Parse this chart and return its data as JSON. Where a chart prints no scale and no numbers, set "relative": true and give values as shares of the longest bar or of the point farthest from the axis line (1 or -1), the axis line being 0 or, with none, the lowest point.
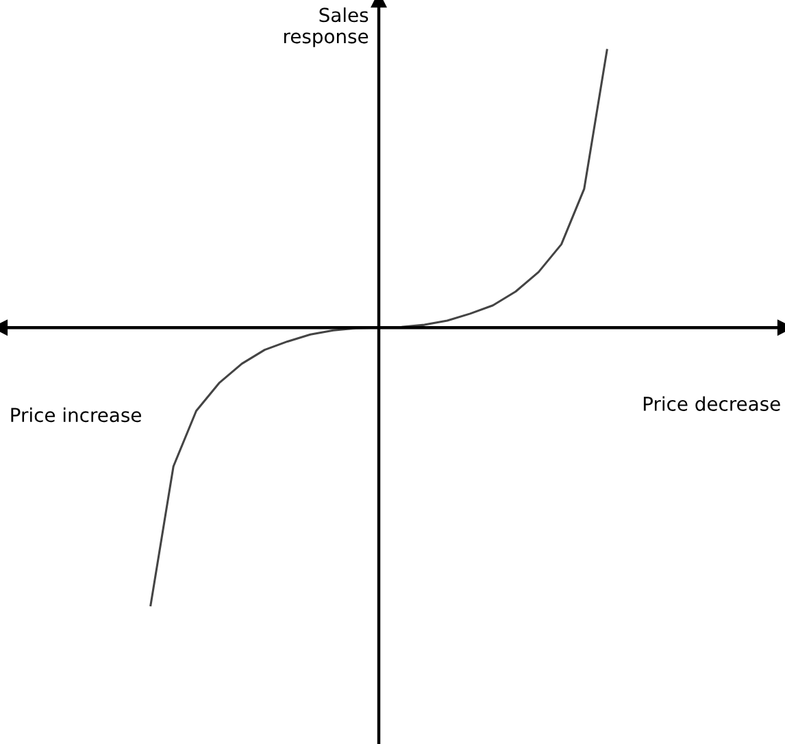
{
  "chart_data": {
    "type": "line",
    "relative": true,
    "ylabel": "Sales response",
    "annotations": [
      "Price increase",
      "Price decrease"
    ],
    "categories": [
      null,
      null,
      null,
      null,
      null,
      null,
      null,
      null,
      null,
      null,
      null,
      null,
      null,
      null,
      null,
      null,
      null,
      null,
      null,
      null,
      null
    ],
    "series": [
      {
        "color": "#444444",
        "values": [
          -1.0,
          -0.5,
          -0.3,
          -0.2,
          -0.13,
          -0.08,
          -0.05,
          -0.025,
          -0.01,
          -0.002,
          0,
          0.002,
          0.01,
          0.025,
          0.05,
          0.08,
          0.13,
          0.2,
          0.3,
          0.5,
          1.0
        ]
      }
    ],
    "line_style": "solid"
  }
}
